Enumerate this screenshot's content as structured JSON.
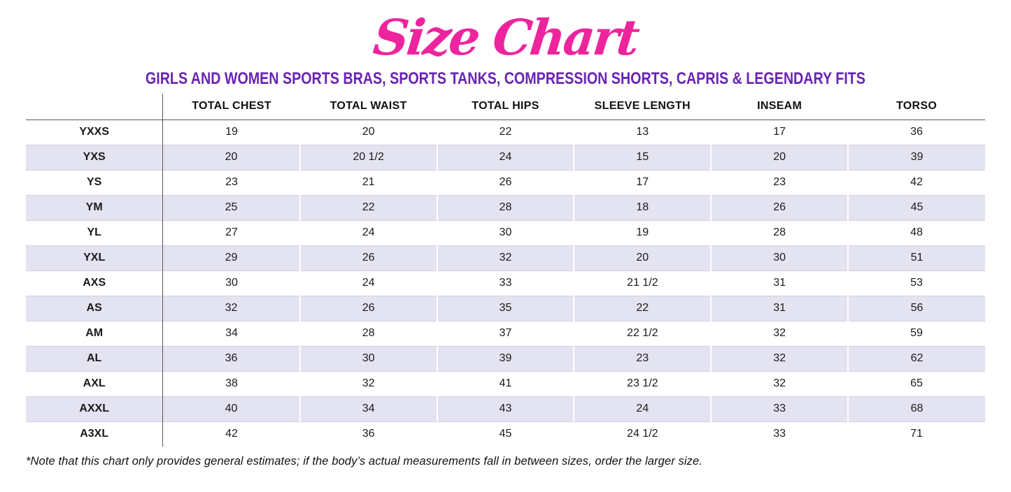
{
  "page": {
    "title": "Size Chart",
    "subtitle": "GIRLS AND WOMEN SPORTS BRAS, SPORTS TANKS, COMPRESSION SHORTS, CAPRIS & LEGENDARY FITS",
    "note": "*Note that this chart only provides general estimates; if the body’s actual measurements fall in between sizes, order the larger size."
  },
  "colors": {
    "title_pink": "#ee249e",
    "subtitle_purple": "#6a23b5",
    "row_shade": "#e4e3f1",
    "text": "#1a1a1a"
  },
  "chart_data": {
    "type": "table",
    "title": "Size Chart",
    "subtitle": "GIRLS AND WOMEN SPORTS BRAS, SPORTS TANKS, COMPRESSION SHORTS, CAPRIS & LEGENDARY FITS",
    "columns": [
      "TOTAL CHEST",
      "TOTAL WAIST",
      "TOTAL HIPS",
      "SLEEVE LENGTH",
      "INSEAM",
      "TORSO"
    ],
    "rows": [
      {
        "size": "YXXS",
        "values": [
          "19",
          "20",
          "22",
          "13",
          "17",
          "36"
        ]
      },
      {
        "size": "YXS",
        "values": [
          "20",
          "20 1/2",
          "24",
          "15",
          "20",
          "39"
        ]
      },
      {
        "size": "YS",
        "values": [
          "23",
          "21",
          "26",
          "17",
          "23",
          "42"
        ]
      },
      {
        "size": "YM",
        "values": [
          "25",
          "22",
          "28",
          "18",
          "26",
          "45"
        ]
      },
      {
        "size": "YL",
        "values": [
          "27",
          "24",
          "30",
          "19",
          "28",
          "48"
        ]
      },
      {
        "size": "YXL",
        "values": [
          "29",
          "26",
          "32",
          "20",
          "30",
          "51"
        ]
      },
      {
        "size": "AXS",
        "values": [
          "30",
          "24",
          "33",
          "21 1/2",
          "31",
          "53"
        ]
      },
      {
        "size": "AS",
        "values": [
          "32",
          "26",
          "35",
          "22",
          "31",
          "56"
        ]
      },
      {
        "size": "AM",
        "values": [
          "34",
          "28",
          "37",
          "22 1/2",
          "32",
          "59"
        ]
      },
      {
        "size": "AL",
        "values": [
          "36",
          "30",
          "39",
          "23",
          "32",
          "62"
        ]
      },
      {
        "size": "AXL",
        "values": [
          "38",
          "32",
          "41",
          "23 1/2",
          "32",
          "65"
        ]
      },
      {
        "size": "AXXL",
        "values": [
          "40",
          "34",
          "43",
          "24",
          "33",
          "68"
        ]
      },
      {
        "size": "A3XL",
        "values": [
          "42",
          "36",
          "45",
          "24 1/2",
          "33",
          "71"
        ]
      }
    ],
    "note": "*Note that this chart only provides general estimates; if the body’s actual measurements fall in between sizes, order the larger size.",
    "layout": {
      "shaded_row_indices": [
        1,
        3,
        5,
        7,
        9,
        11
      ],
      "grid": "horizontal row separators + dark vertical divider after size column"
    }
  }
}
